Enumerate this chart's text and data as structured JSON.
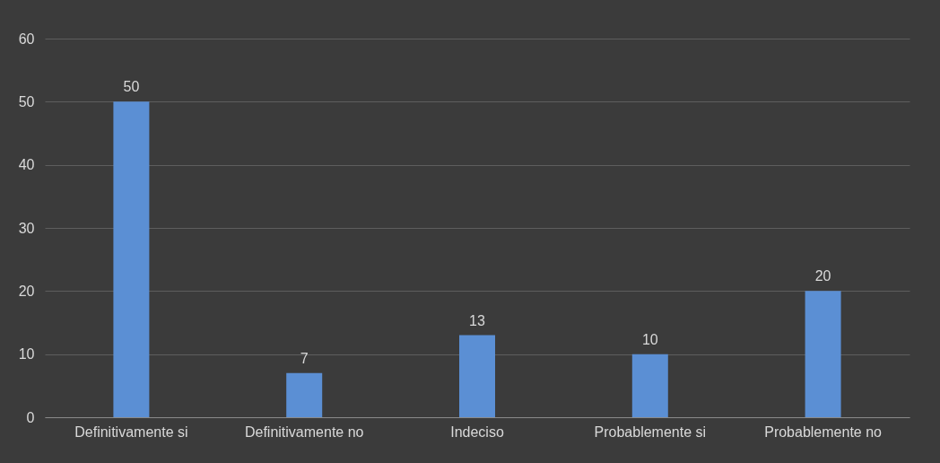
{
  "chart_data": {
    "type": "bar",
    "categories": [
      "Definitivamente si",
      "Definitivamente no",
      "Indeciso",
      "Probablemente si",
      "Probablemente no"
    ],
    "values": [
      50,
      7,
      13,
      10,
      20
    ],
    "color": "#5b8fd4",
    "ylim": [
      0,
      60
    ],
    "yticks": [
      0,
      10,
      20,
      30,
      40,
      50,
      60
    ],
    "grid": "y",
    "data_labels": true
  }
}
